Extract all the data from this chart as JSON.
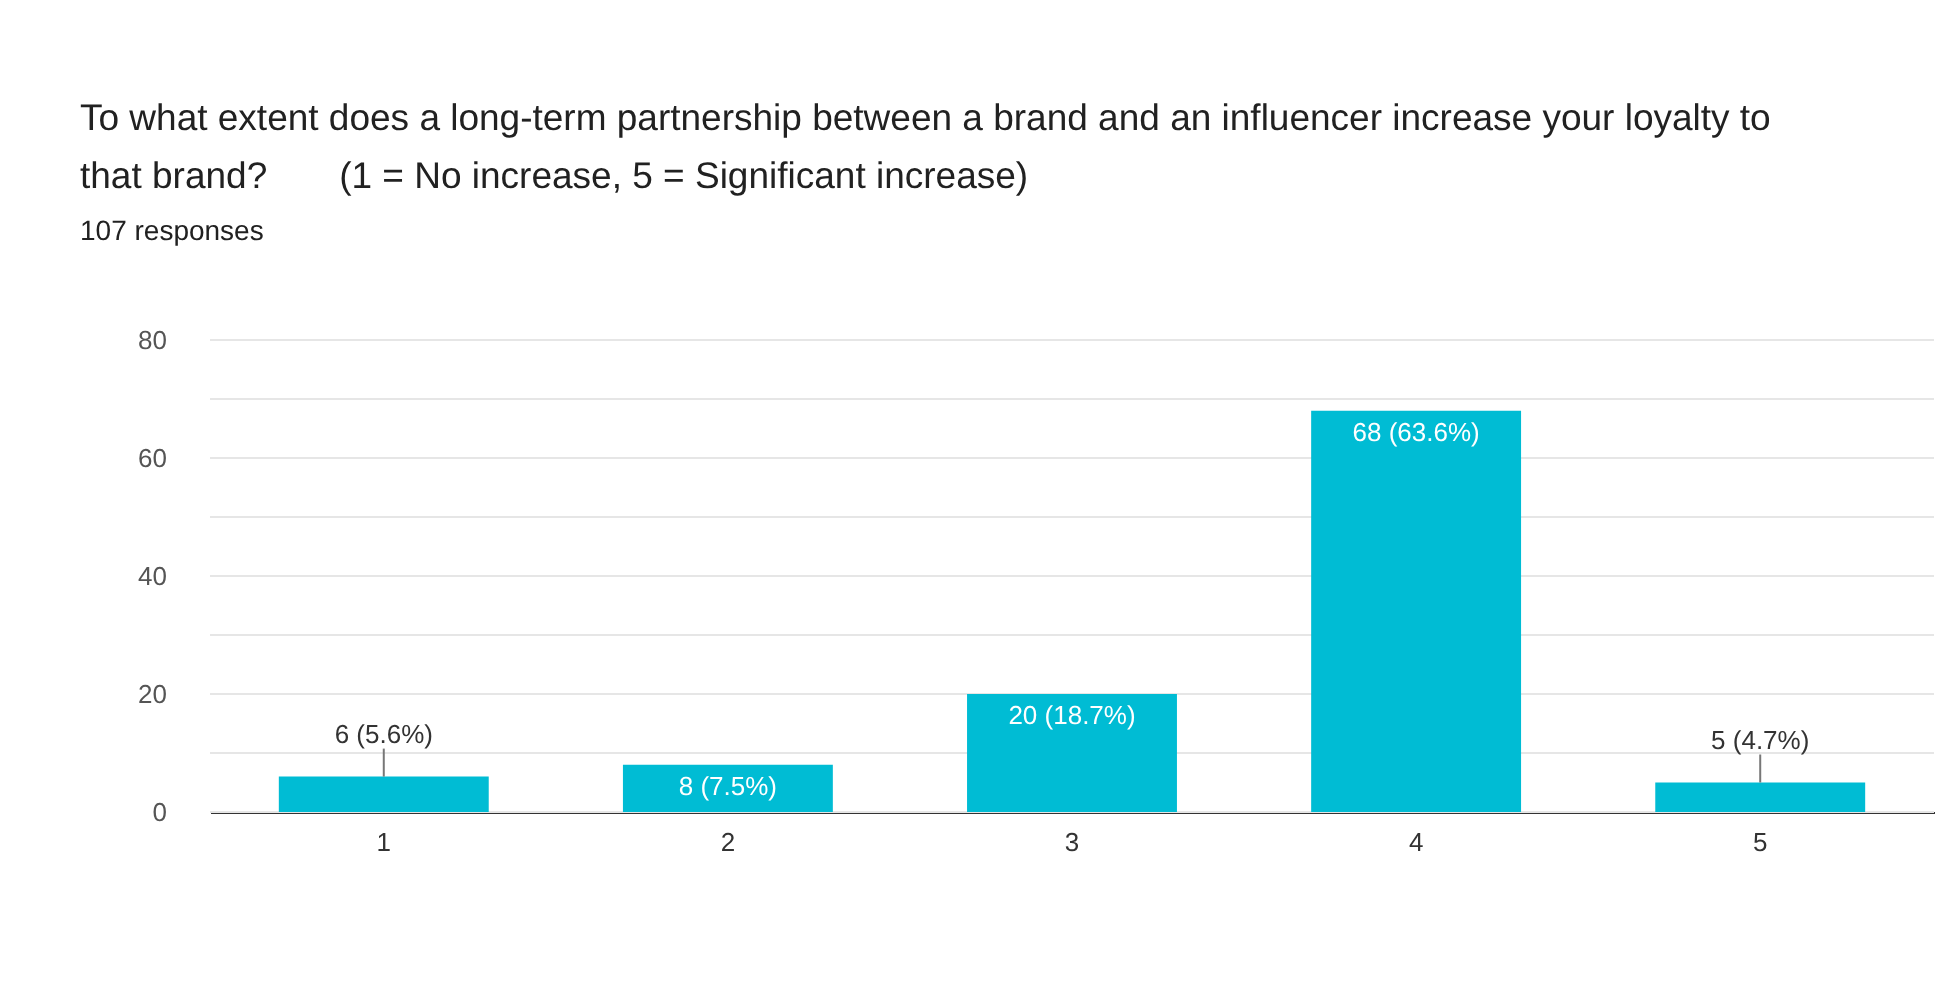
{
  "chart_data": {
    "type": "bar",
    "title": "To what extent does a long-term partnership between a brand and an influencer increase your loyalty to that brand?       (1 = No increase, 5 = Significant increase)",
    "subtitle": "107 responses",
    "categories": [
      "1",
      "2",
      "3",
      "4",
      "5"
    ],
    "values": [
      6,
      8,
      20,
      68,
      5
    ],
    "value_labels": [
      "6 (5.6%)",
      "8 (7.5%)",
      "20 (18.7%)",
      "68 (63.6%)",
      "5 (4.7%)"
    ],
    "color": "#00bcd4",
    "ylim": [
      0,
      80
    ],
    "yticks": [
      0,
      {
        "value": 10,
        "label": null
      },
      20,
      {
        "value": 30,
        "label": null
      },
      40,
      {
        "value": 50,
        "label": null
      },
      60,
      {
        "value": 70,
        "label": null
      },
      80
    ],
    "grid": "y"
  }
}
